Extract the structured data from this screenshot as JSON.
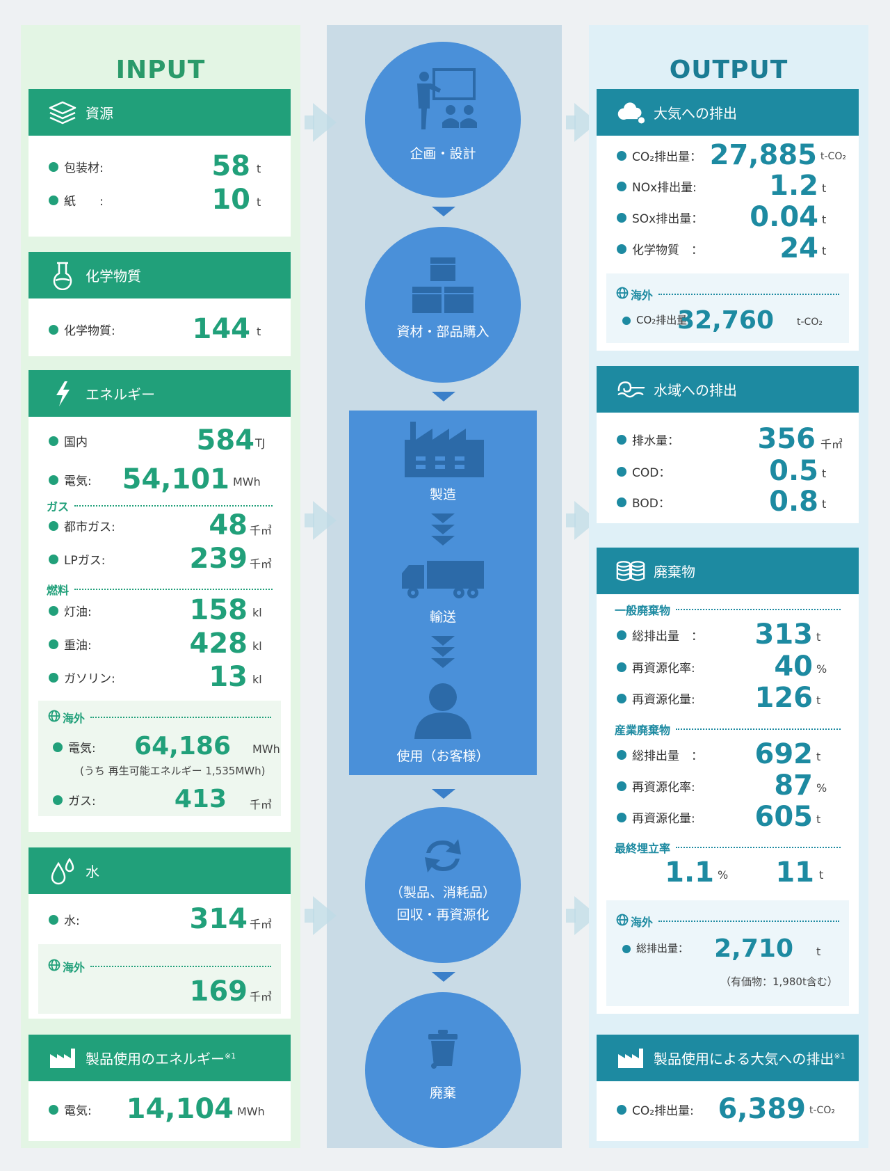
{
  "colors": {
    "input_green": "#21a07a",
    "output_teal": "#1d8aa1",
    "process_blue": "#4a90d9"
  },
  "input": {
    "title": "INPUT",
    "resources": {
      "header": "資源",
      "icon": "layers-icon",
      "rows": [
        {
          "label": "包装材:",
          "value": "58",
          "unit": "t"
        },
        {
          "label": "紙　　:",
          "value": "10",
          "unit": "t"
        }
      ]
    },
    "chemicals": {
      "header": "化学物質",
      "icon": "flask-icon",
      "rows": [
        {
          "label": "化学物質:",
          "value": "144",
          "unit": "t"
        }
      ]
    },
    "energy": {
      "header": "エネルギー",
      "icon": "lightning-icon",
      "domestic": {
        "label": "国内",
        "value": "584",
        "unit": "TJ"
      },
      "electricity": {
        "label": "電気:",
        "value": "54,101",
        "unit": "MWh"
      },
      "gas_header": "ガス",
      "city_gas": {
        "label": "都市ガス:",
        "value": "48",
        "unit": "千㎥"
      },
      "lp_gas": {
        "label": "LPガス:",
        "value": "239",
        "unit": "千㎥"
      },
      "fuel_header": "燃料",
      "kerosene": {
        "label": "灯油:",
        "value": "158",
        "unit": "kl"
      },
      "heavy_oil": {
        "label": "重油:",
        "value": "428",
        "unit": "kl"
      },
      "gasoline": {
        "label": "ガソリン:",
        "value": "13",
        "unit": "kl"
      },
      "overseas_header": "海外",
      "overseas_electricity": {
        "label": "電気:",
        "value": "64,186",
        "unit": "MWh"
      },
      "overseas_note": "(うち 再生可能エネルギー 1,535MWh)",
      "overseas_gas": {
        "label": "ガス:",
        "value": "413",
        "unit": "千㎥"
      }
    },
    "water": {
      "header": "水",
      "icon": "water-drops-icon",
      "row": {
        "label": "水:",
        "value": "314",
        "unit": "千㎥"
      },
      "overseas_header": "海外",
      "overseas_value": "169",
      "overseas_unit": "千㎥"
    },
    "product_energy": {
      "header": "製品使用のエネルギー",
      "sup": "※1",
      "icon": "factory-icon",
      "row": {
        "label": "電気:",
        "value": "14,104",
        "unit": "MWh"
      }
    }
  },
  "process": {
    "planning": "企画・設計",
    "procurement": "資材・部品購入",
    "manufacturing": "製造",
    "transport": "輸送",
    "usage": "使用（お客様）",
    "recovery_line1": "（製品、消耗品）",
    "recovery_line2": "回収・再資源化",
    "disposal": "廃棄"
  },
  "output": {
    "title": "OUTPUT",
    "air": {
      "header": "大気への排出",
      "icon": "cloud-icon",
      "rows": [
        {
          "label": "CO₂排出量：",
          "value": "27,885",
          "unit": "t-CO₂"
        },
        {
          "label": "NOx排出量:",
          "value": "1.2",
          "unit": "t"
        },
        {
          "label": "SOx排出量：",
          "value": "0.04",
          "unit": "t"
        },
        {
          "label": "化学物質　：",
          "value": "24",
          "unit": "t"
        }
      ],
      "overseas_header": "海外",
      "overseas_row": {
        "label": "CO₂排出量：",
        "value": "32,760",
        "unit": "t-CO₂"
      }
    },
    "water": {
      "header": "水域への排出",
      "icon": "wave-icon",
      "rows": [
        {
          "label": "排水量：",
          "value": "356",
          "unit": "千㎥"
        },
        {
          "label": "COD：",
          "value": "0.5",
          "unit": "t"
        },
        {
          "label": "BOD：",
          "value": "0.8",
          "unit": "t"
        }
      ]
    },
    "waste": {
      "header": "廃棄物",
      "icon": "database-icon",
      "general_header": "一般廃棄物",
      "general": [
        {
          "label": "総排出量　：",
          "value": "313",
          "unit": "t"
        },
        {
          "label": "再資源化率:",
          "value": "40",
          "unit": "%"
        },
        {
          "label": "再資源化量:",
          "value": "126",
          "unit": "t"
        }
      ],
      "industrial_header": "産業廃棄物",
      "industrial": [
        {
          "label": "総排出量　：",
          "value": "692",
          "unit": "t"
        },
        {
          "label": "再資源化率:",
          "value": "87",
          "unit": "%"
        },
        {
          "label": "再資源化量:",
          "value": "605",
          "unit": "t"
        }
      ],
      "landfill_header": "最終埋立率",
      "landfill_rate": "1.1",
      "landfill_rate_unit": "%",
      "landfill_amount": "11",
      "landfill_amount_unit": "t",
      "overseas_header": "海外",
      "overseas_row": {
        "label": "総排出量：",
        "value": "2,710",
        "unit": "t"
      },
      "overseas_note": "（有価物：1,980t含む）"
    },
    "product_emission": {
      "header": "製品使用による大気への排出",
      "sup": "※1",
      "icon": "factory-icon",
      "row": {
        "label": "CO₂排出量:",
        "value": "6,389",
        "unit": "t-CO₂"
      }
    }
  }
}
